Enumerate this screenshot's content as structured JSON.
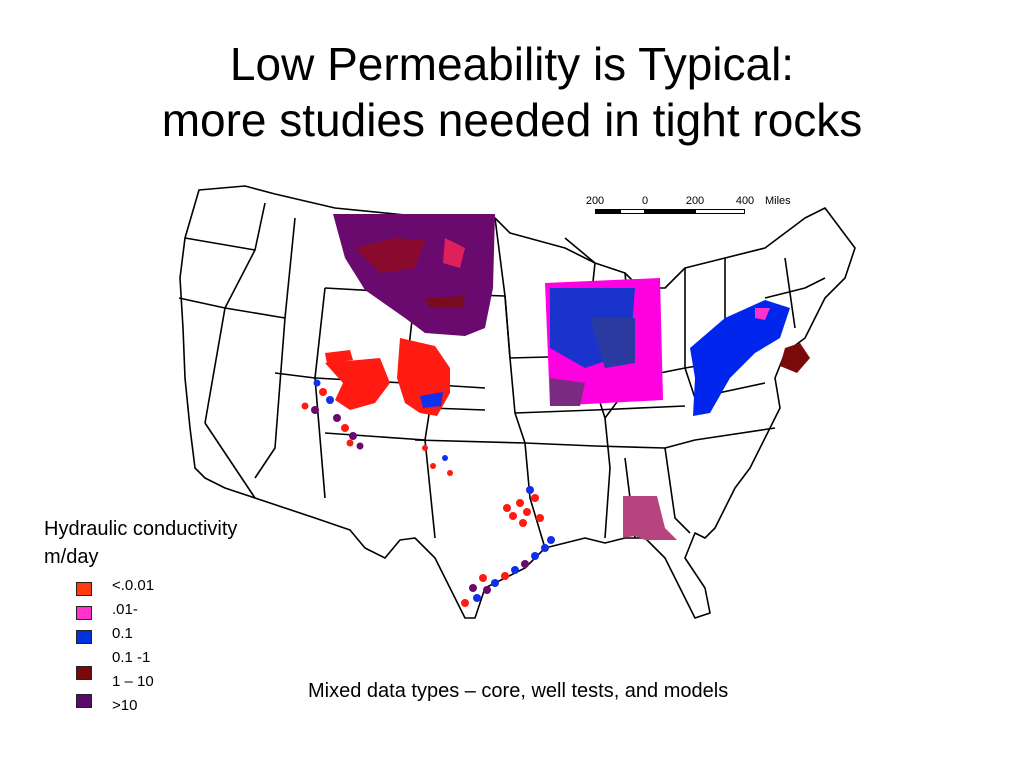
{
  "slide": {
    "title_line1": "Low Permeability is Typical:",
    "title_line2": "more studies needed in tight rocks"
  },
  "map": {
    "region": "Conterminous United States",
    "scale_bar": {
      "ticks": [
        "200",
        "0",
        "200",
        "400"
      ],
      "unit": "Miles"
    },
    "colors": {
      "lt_0_01": "#ff2a12",
      "r_0_01_0_1_pink": "#ff33cc",
      "r_0_1": "#0022ee",
      "r_0_1_1": "#8a0a10",
      "r_1_10": "#6b0a6e",
      "gulf_pink": "#b5447f"
    }
  },
  "legend": {
    "title_line1": "Hydraulic conductivity",
    "title_line2": "m/day",
    "swatch_colors": [
      "#ff3b12",
      "#ff33cc",
      "#0033dd",
      "#7a0a0a",
      "#5a0a6a"
    ],
    "labels": [
      "<.0.01",
      ".01-",
      "0.1",
      "0.1 -1",
      "1 – 10",
      ">10"
    ]
  },
  "footnote": "Mixed data types – core, well tests, and models"
}
